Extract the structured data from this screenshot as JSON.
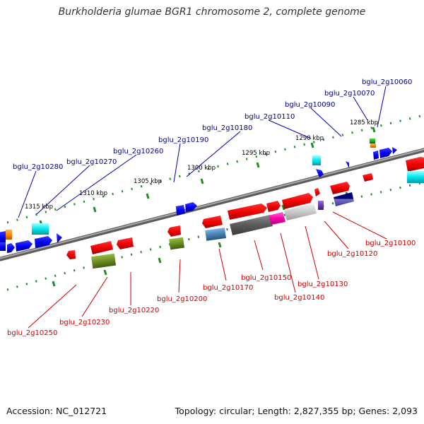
{
  "title": "Burkholderia glumae BGR1 chromosome 2, complete genome",
  "footer": {
    "accession": "Accession: NC_012721",
    "summary": "Topology: circular; Length: 2,827,355 bp; Genes: 2,093"
  },
  "colors": {
    "backbone": "#808080",
    "tick": "#228b22",
    "top_label": "#00008b",
    "bottom_label": "#cc0000",
    "kbp_label": "#000000"
  },
  "kbp_labels": [
    {
      "text": "1285 kbp",
      "track": "top"
    },
    {
      "text": "1290 kbp",
      "track": "top"
    },
    {
      "text": "1295 kbp",
      "track": "top"
    },
    {
      "text": "1300 kbp",
      "track": "top"
    },
    {
      "text": "1305 kbp",
      "track": "top"
    },
    {
      "text": "1310 kbp",
      "track": "top"
    },
    {
      "text": "1315 kbp",
      "track": "top"
    }
  ],
  "top_gene_labels": [
    "bglu_2g10060",
    "bglu_2g10070",
    "bglu_2g10090",
    "bglu_2g10110",
    "bglu_2g10180",
    "bglu_2g10190",
    "bglu_2g10260",
    "bglu_2g10270",
    "bglu_2g10280"
  ],
  "bottom_gene_labels": [
    "bglu_2g10100",
    "bglu_2g10120",
    "bglu_2g10130",
    "bglu_2g10140",
    "bglu_2g10150",
    "bglu_2g10170",
    "bglu_2g10200",
    "bglu_2g10220",
    "bglu_2g10230",
    "bglu_2g10250"
  ]
}
